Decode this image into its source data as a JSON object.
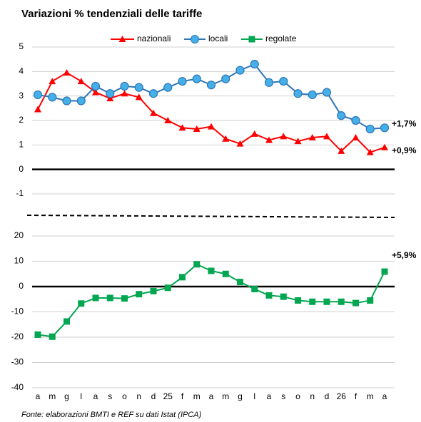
{
  "chart_data": {
    "type": "line",
    "title": "Variazioni % tendenziali delle tariffe",
    "note": "Fonte: elaborazioni BMTI e REF su dati Istat (IPCA)",
    "categories": [
      "a",
      "m",
      "g",
      "l",
      "a",
      "s",
      "o",
      "n",
      "d",
      "25",
      "f",
      "m",
      "a",
      "m",
      "g",
      "l",
      "a",
      "s",
      "o",
      "n",
      "d",
      "26",
      "f",
      "m",
      "a"
    ],
    "ylim": [
      -1,
      5
    ],
    "yticks": [
      -1,
      0,
      1,
      2,
      3,
      4,
      5
    ],
    "y2lim": [
      -40,
      20
    ],
    "y2ticks": [
      -40,
      -30,
      -20,
      -10,
      0,
      10,
      20
    ],
    "grid": true,
    "zero_line": true,
    "legend": "top",
    "series": [
      {
        "name": "nazionali",
        "color": "#ff0000",
        "marker": "triangle",
        "end_label": "+0,9%",
        "end_color": "#ff0000",
        "values": [
          2.45,
          3.6,
          3.95,
          3.6,
          3.15,
          2.9,
          3.1,
          2.95,
          2.3,
          2.0,
          1.7,
          1.65,
          1.75,
          1.25,
          1.05,
          1.45,
          1.2,
          1.35,
          1.15,
          1.3,
          1.35,
          0.75,
          1.3,
          0.7,
          0.9
        ]
      },
      {
        "name": "locali",
        "color": "#2e75b6",
        "fill": "#45b0e8",
        "marker": "circle",
        "end_label": "+1,7%",
        "end_color": "#4a7fd0",
        "values": [
          3.05,
          2.95,
          2.8,
          2.8,
          3.4,
          3.1,
          3.4,
          3.35,
          3.1,
          3.35,
          3.6,
          3.7,
          3.45,
          3.7,
          4.05,
          4.3,
          3.55,
          3.6,
          3.1,
          3.05,
          3.15,
          2.2,
          2.0,
          1.65,
          1.7
        ]
      },
      {
        "name": "regolate",
        "color": "#00a650",
        "marker": "square",
        "axis": "y2",
        "end_label": "+5,9%",
        "end_color": "#00a650",
        "values": [
          -19,
          -19.8,
          -13.8,
          -6.7,
          -4.5,
          -4.5,
          -4.7,
          -3,
          -1.8,
          -0.5,
          3.7,
          8.8,
          6.2,
          5,
          1.8,
          -1,
          -3.5,
          -4,
          -5.5,
          -6,
          -6,
          -6,
          -6.5,
          -5.5,
          5.9
        ]
      }
    ]
  }
}
